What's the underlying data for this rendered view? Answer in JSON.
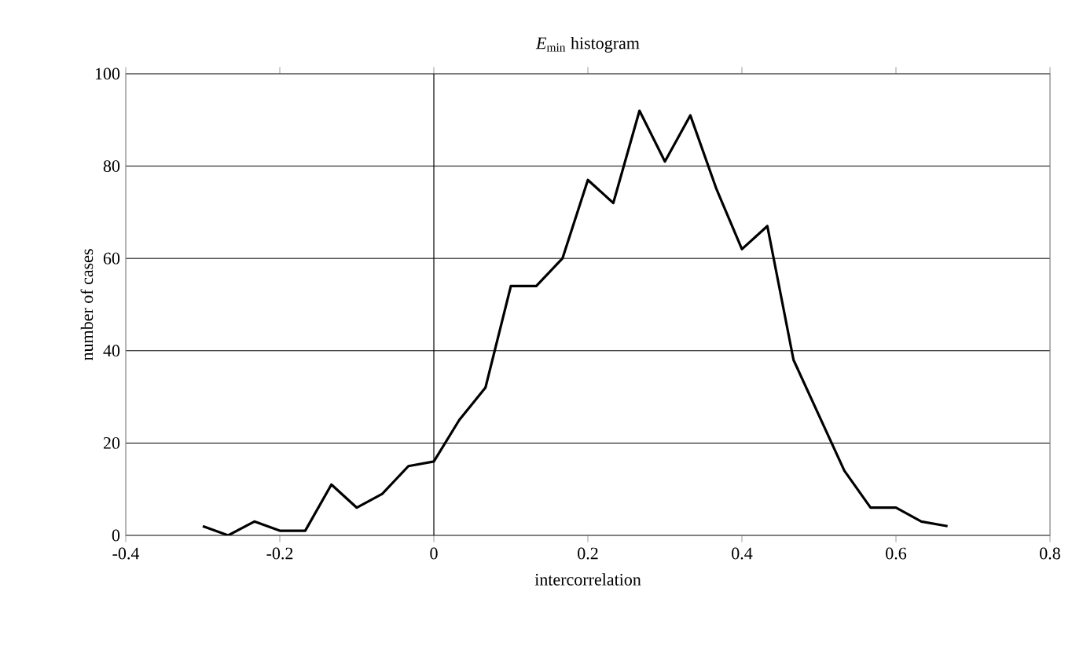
{
  "chart_data": {
    "type": "line",
    "title": "*E*$_{min}$     histogram",
    "xlabel": "intercorrelation",
    "ylabel": "number of cases",
    "x": [
      -0.3,
      -0.267,
      -0.233,
      -0.2,
      -0.167,
      -0.133,
      -0.1,
      -0.067,
      -0.033,
      0,
      0.033,
      0.067,
      0.1,
      0.133,
      0.167,
      0.2,
      0.233,
      0.267,
      0.3,
      0.333,
      0.367,
      0.4,
      0.433,
      0.467,
      0.5,
      0.533,
      0.567,
      0.6,
      0.633,
      0.667
    ],
    "series": [
      {
        "color": "#000000",
        "values": [
          2,
          0,
          3,
          1,
          1,
          11,
          6,
          9,
          15,
          16,
          25,
          32,
          54,
          54,
          60,
          77,
          72,
          92,
          81,
          91,
          75,
          62,
          67,
          38,
          26,
          14,
          6,
          6,
          3,
          2
        ]
      }
    ],
    "xlim": [
      -0.4,
      0.8
    ],
    "xticks": [
      -0.4,
      -0.2,
      0,
      0.2,
      0.4,
      0.6,
      0.8
    ],
    "ylim": [
      0,
      100
    ],
    "yticks": [
      0,
      20,
      40,
      60,
      80,
      100
    ],
    "grid": "y",
    "marker": "none",
    "line_style": "solid",
    "ref_lines": [
      {
        "axis": "x",
        "value": 0,
        "color": "#000000"
      }
    ]
  }
}
